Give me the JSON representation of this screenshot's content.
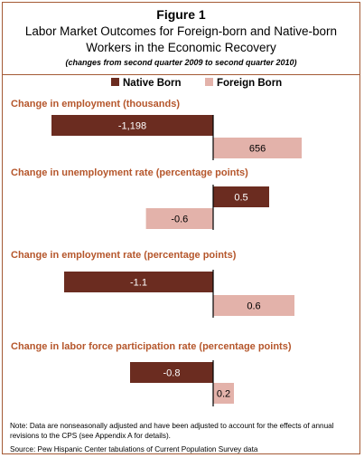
{
  "header": {
    "figure_label": "Figure 1",
    "title_line1": "Labor Market Outcomes for Foreign-born and Native-born",
    "title_line2": "Workers in the Economic Recovery",
    "subtitle": "(changes from second quarter 2009 to second quarter 2010)"
  },
  "colors": {
    "native": "#6b2c20",
    "foreign": "#e3b2aa",
    "accent": "#b5562b",
    "border": "#a45a35"
  },
  "chart_data": {
    "type": "bar",
    "orientation": "horizontal",
    "legend": [
      "Native Born",
      "Foreign Born"
    ],
    "legend_placement": "top",
    "panels": [
      {
        "title": "Change in employment (thousands)",
        "series": [
          {
            "name": "Native Born",
            "value": -1198,
            "label": "-1,198"
          },
          {
            "name": "Foreign Born",
            "value": 656,
            "label": "656"
          }
        ]
      },
      {
        "title": "Change in unemployment rate (percentage points)",
        "series": [
          {
            "name": "Native Born",
            "value": 0.5,
            "label": "0.5"
          },
          {
            "name": "Foreign Born",
            "value": -0.6,
            "label": "-0.6"
          }
        ]
      },
      {
        "title": "Change in employment rate (percentage points)",
        "series": [
          {
            "name": "Native Born",
            "value": -1.1,
            "label": "-1.1"
          },
          {
            "name": "Foreign Born",
            "value": 0.6,
            "label": "0.6"
          }
        ]
      },
      {
        "title": "Change in labor force participation rate (percentage points)",
        "series": [
          {
            "name": "Native Born",
            "value": -0.8,
            "label": "-0.8"
          },
          {
            "name": "Foreign Born",
            "value": 0.2,
            "label": "0.2"
          }
        ]
      }
    ]
  },
  "footer": {
    "note": "Note: Data are nonseasonally adjusted and have been adjusted to account for the effects of annual revisions to the CPS (see Appendix A for details).",
    "source": "Source: Pew Hispanic Center tabulations of Current Population Survey data"
  }
}
